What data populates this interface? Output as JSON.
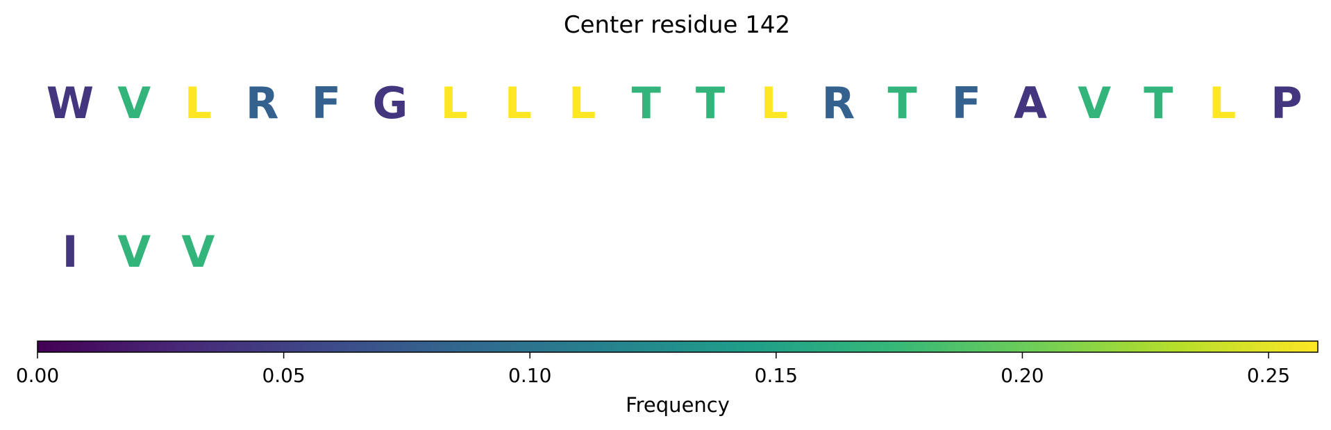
{
  "chart_data": {
    "type": "heatmap",
    "title": "Center residue 142",
    "rows": [
      {
        "residues": [
          "W",
          "V",
          "L",
          "R",
          "F",
          "G",
          "L",
          "L",
          "L",
          "T",
          "T",
          "L",
          "R",
          "T",
          "F",
          "A",
          "V",
          "T",
          "L",
          "P"
        ],
        "values": [
          0.04,
          0.17,
          0.26,
          0.08,
          0.08,
          0.04,
          0.26,
          0.26,
          0.26,
          0.17,
          0.17,
          0.26,
          0.08,
          0.17,
          0.08,
          0.04,
          0.17,
          0.17,
          0.26,
          0.04
        ]
      },
      {
        "residues": [
          "I",
          "V",
          "V"
        ],
        "values": [
          0.04,
          0.17,
          0.17
        ]
      }
    ],
    "colorbar": {
      "label": "Frequency",
      "range": [
        0,
        0.26
      ],
      "ticks": [
        0.0,
        0.05,
        0.1,
        0.15,
        0.2,
        0.25
      ],
      "tick_labels": [
        "0.00",
        "0.05",
        "0.10",
        "0.15",
        "0.20",
        "0.25"
      ],
      "colormap": "viridis",
      "orientation": "horizontal"
    },
    "colors": [
      "#440154",
      "#482878",
      "#3e4989",
      "#31688e",
      "#26828e",
      "#1f9e89",
      "#35b779",
      "#6ece58",
      "#b5de2b",
      "#fde725"
    ]
  }
}
